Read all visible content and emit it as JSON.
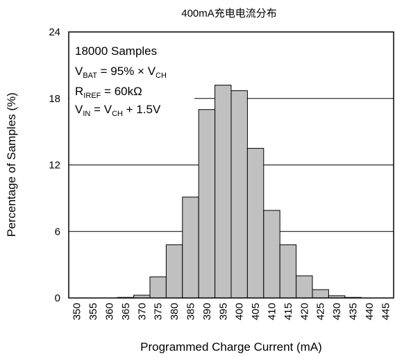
{
  "chart_data": {
    "type": "bar",
    "title": "400mA充电电流分布",
    "xlabel": "Programmed Charge Current (mA)",
    "ylabel": "Percentage of Samples (%)",
    "ylim": [
      0,
      24
    ],
    "yticks": [
      "0",
      "6",
      "12",
      "18",
      "24"
    ],
    "grid": "horizontal",
    "categories": [
      "350",
      "355",
      "360",
      "365",
      "370",
      "375",
      "380",
      "385",
      "390",
      "395",
      "400",
      "405",
      "410",
      "415",
      "420",
      "425",
      "430",
      "435",
      "440",
      "445"
    ],
    "values": [
      0,
      0,
      0,
      0.05,
      0.25,
      1.9,
      4.8,
      9.1,
      17.0,
      19.2,
      18.7,
      13.5,
      7.9,
      4.8,
      2.0,
      0.75,
      0.2,
      0.05,
      0,
      0
    ],
    "bar_color": "#c0c0c0",
    "annotations": [
      {
        "text": "18000 Samples"
      },
      {
        "main": "V",
        "sub": "BAT",
        "rest": " = 95% × V",
        "sub2": "CH",
        "rest2": ""
      },
      {
        "main": "R",
        "sub": "IREF",
        "rest": " = 60kΩ",
        "sub2": "",
        "rest2": ""
      },
      {
        "main": "V",
        "sub": "IN",
        "rest": " = V",
        "sub2": "CH",
        "rest2": " + 1.5V"
      }
    ]
  }
}
